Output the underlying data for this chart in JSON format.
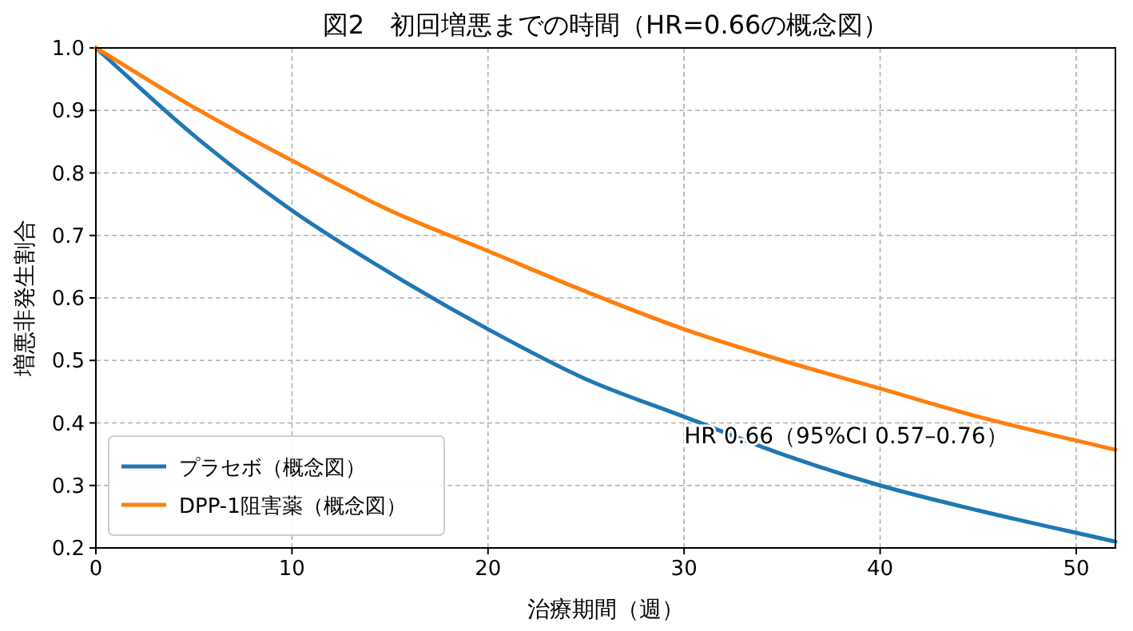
{
  "chart_data": {
    "type": "line",
    "title": "図2　初回増悪までの時間（HR=0.66の概念図）",
    "xlabel": "治療期間（週）",
    "ylabel": "増悪非発生割合",
    "x": [
      0,
      5,
      10,
      15,
      20,
      25,
      30,
      35,
      40,
      45,
      52
    ],
    "series": [
      {
        "name": "プラセボ（概念図）",
        "color": "#1f77b4",
        "values": [
          1,
          0.86,
          0.74,
          0.64,
          0.55,
          0.47,
          0.41,
          0.35,
          0.3,
          0.26,
          0.21
        ]
      },
      {
        "name": "DPP-1阻害薬（概念図）",
        "color": "#ff7f0e",
        "values": [
          1,
          0.905,
          0.82,
          0.74,
          0.675,
          0.61,
          0.55,
          0.5,
          0.455,
          0.41,
          0.357
        ]
      }
    ],
    "xlim": [
      0,
      52
    ],
    "ylim": [
      0.2,
      1.0
    ],
    "xticks": [
      0,
      10,
      20,
      30,
      40,
      50
    ],
    "yticks": [
      0.2,
      0.3,
      0.4,
      0.5,
      0.6,
      0.7,
      0.8,
      0.9,
      {
        "value": 1.0,
        "label": "1.0"
      }
    ],
    "grid": true,
    "legend": "bottom left",
    "line_style": "solid",
    "annotations": [
      "HR 0.66（95%CI 0.57–0.76）"
    ]
  }
}
